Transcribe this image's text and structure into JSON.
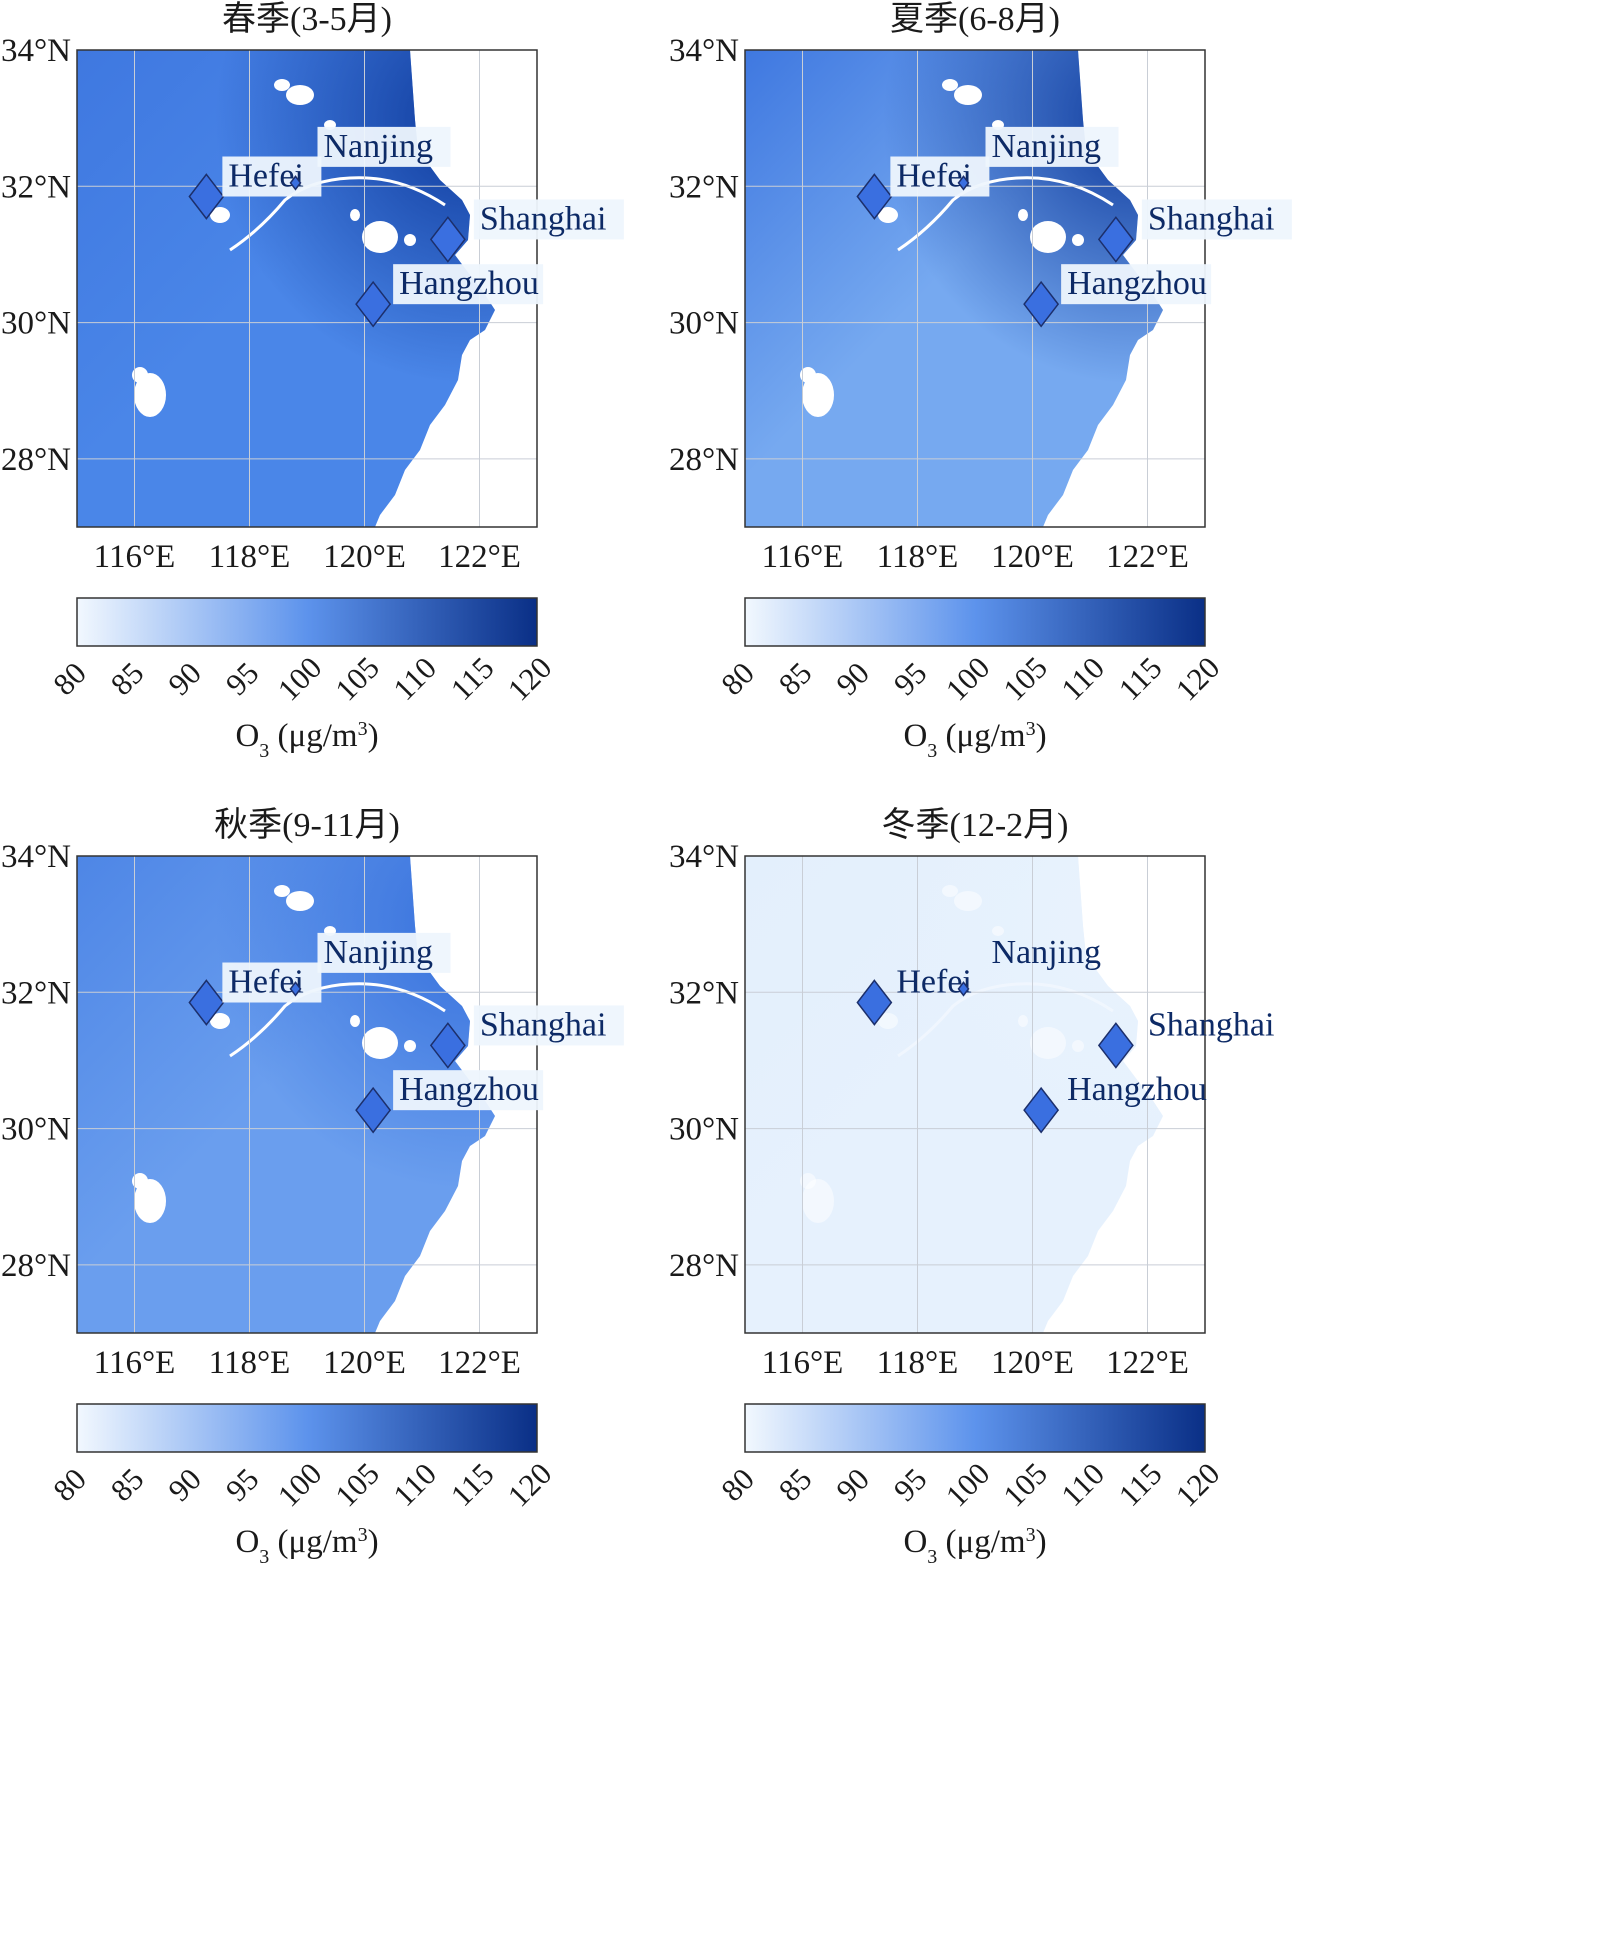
{
  "map": {
    "lat_labels": [
      "34°N",
      "32°N",
      "30°N",
      "28°N"
    ],
    "lon_labels": [
      "116°E",
      "118°E",
      "120°E",
      "122°E"
    ],
    "lat_range": [
      27,
      34
    ],
    "lon_range": [
      115,
      123
    ],
    "lat_ticks": [
      34,
      32,
      30,
      28
    ],
    "lon_ticks": [
      116,
      118,
      120,
      122
    ],
    "grid": true
  },
  "colorbar": {
    "ticks": [
      "80",
      "85",
      "90",
      "95",
      "100",
      "105",
      "110",
      "115",
      "120"
    ],
    "range": [
      80,
      120
    ],
    "low_color": "#f2f8fe",
    "high_color": "#0a2f86",
    "label_main": "O",
    "label_sub": "3",
    "label_tail": " (μg/m",
    "label_sup": "3",
    "label_end": ")"
  },
  "cities": [
    {
      "name": "Hefei",
      "lon": 117.25,
      "lat": 31.85
    },
    {
      "name": "Nanjing",
      "lon": 118.8,
      "lat": 32.05
    },
    {
      "name": "Shanghai",
      "lon": 121.45,
      "lat": 31.22
    },
    {
      "name": "Hangzhou",
      "lon": 120.15,
      "lat": 30.27
    }
  ],
  "panels": [
    {
      "title": "春季(3-5月)",
      "west_color": "#3f78e0",
      "east_color": "#0e3a9c",
      "south_color": "#4a86e8"
    },
    {
      "title": "夏季(6-8月)",
      "west_color": "#3f78e0",
      "east_color": "#0e3a9c",
      "south_color": "#76a9f0"
    },
    {
      "title": "秋季(9-11月)",
      "west_color": "#4e86e6",
      "east_color": "#3670dc",
      "south_color": "#6a9eee"
    },
    {
      "title": "冬季(12-2月)",
      "west_color": "#e3effc",
      "east_color": "#e8f2fd",
      "south_color": "#e6f1fd"
    }
  ]
}
